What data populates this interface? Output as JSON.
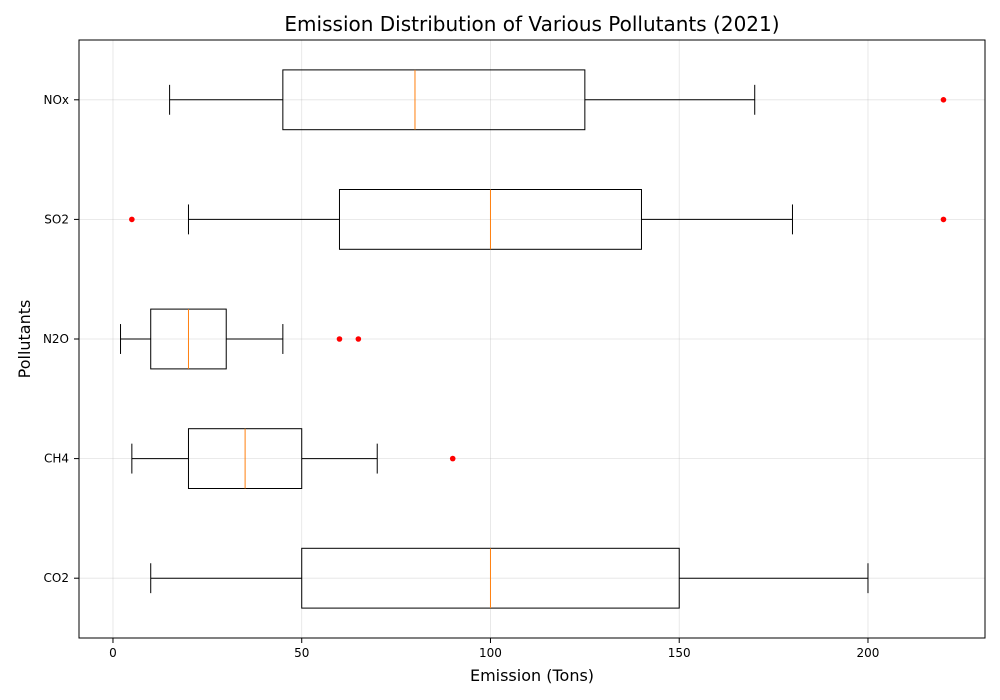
{
  "chart_data": {
    "type": "box",
    "orientation": "horizontal",
    "title": "Emission Distribution of Various Pollutants (2021)",
    "xlabel": "Emission (Tons)",
    "ylabel": "Pollutants",
    "xlim": [
      -9,
      231
    ],
    "xticks": [
      0,
      50,
      100,
      150,
      200
    ],
    "grid": true,
    "box_color": "#000000",
    "median_color": "#ff7f0e",
    "outlier_color": "#ff0000",
    "categories": [
      "CO2",
      "CH4",
      "N2O",
      "SO2",
      "NOx"
    ],
    "boxes": [
      {
        "category": "CO2",
        "whisker_low": 10,
        "q1": 50,
        "median": 100,
        "q3": 150,
        "whisker_high": 200,
        "outliers": []
      },
      {
        "category": "CH4",
        "whisker_low": 5,
        "q1": 20,
        "median": 35,
        "q3": 50,
        "whisker_high": 70,
        "outliers": [
          90
        ]
      },
      {
        "category": "N2O",
        "whisker_low": 2,
        "q1": 10,
        "median": 20,
        "q3": 30,
        "whisker_high": 45,
        "outliers": [
          60,
          65
        ]
      },
      {
        "category": "SO2",
        "whisker_low": 20,
        "q1": 60,
        "median": 100,
        "q3": 140,
        "whisker_high": 180,
        "outliers": [
          5,
          220
        ]
      },
      {
        "category": "NOx",
        "whisker_low": 15,
        "q1": 45,
        "median": 80,
        "q3": 125,
        "whisker_high": 170,
        "outliers": [
          220
        ]
      }
    ]
  }
}
